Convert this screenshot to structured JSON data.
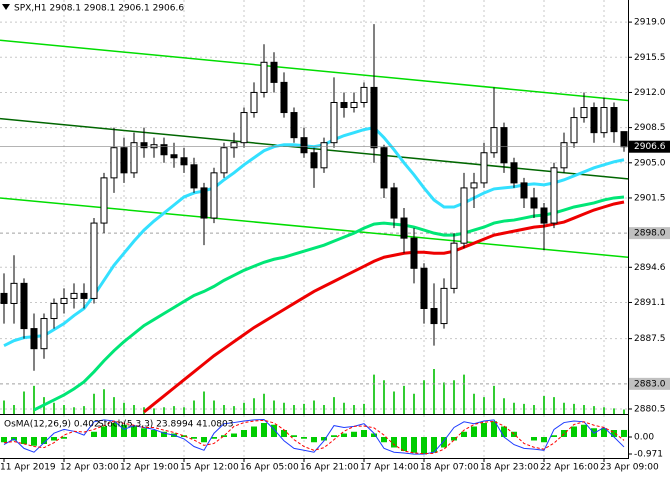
{
  "chart_data": {
    "type": "candlestick",
    "title": "SPX,H1  2908.1 2908.1 2906.1 2906.6",
    "categories": [
      "11 Apr 2019",
      null,
      null,
      null,
      null,
      null,
      "12 Apr 03:00",
      null,
      null,
      null,
      null,
      null,
      "12 Apr 19:00",
      null,
      null,
      null,
      null,
      null,
      "15 Apr 12:00",
      null,
      null,
      null,
      null,
      null,
      "16 Apr 05:00",
      null,
      null,
      null,
      null,
      null,
      "16 Apr 21:00",
      null,
      null,
      null,
      null,
      null,
      "17 Apr 14:00",
      null,
      null,
      null,
      null,
      null,
      "18 Apr 07:00",
      null,
      null,
      null,
      null,
      null,
      "18 Apr 23:00",
      null,
      null,
      null,
      null,
      null,
      "22 Apr 16:00",
      null,
      null,
      null,
      null,
      null,
      "23 Apr 09:00",
      null,
      null
    ],
    "open": [
      2892,
      2891,
      2893,
      2888.5,
      2886.5,
      2889.5,
      2891,
      2891.5,
      2892,
      2891.5,
      2899,
      2903.5,
      2906.5,
      2904,
      2907,
      2906.5,
      2906.8,
      2905.8,
      2905.5,
      2904.8,
      2902.5,
      2899.5,
      2904,
      2906.5,
      2907,
      2910,
      2912,
      2915,
      2913,
      2910,
      2907.5,
      2906,
      2904.5,
      2907,
      2911,
      2910.5,
      2911,
      2912.5,
      2906.5,
      2902.5,
      2899.5,
      2897.5,
      2894.5,
      2890.5,
      2889,
      2892.5,
      2897,
      2902.5,
      2903,
      2906,
      2908.5,
      2905,
      2903,
      2901.5,
      2900.5,
      2899,
      2904.5,
      2907,
      2909.5,
      2910.5,
      2908,
      2910.5,
      2908.1
    ],
    "high": [
      2894,
      2895.8,
      2893.5,
      2890,
      2890,
      2891.5,
      2892.5,
      2893,
      2893,
      2899.5,
      2904,
      2908.5,
      2907.5,
      2908,
      2908.5,
      2907.5,
      2907.5,
      2907,
      2906.5,
      2905.5,
      2903,
      2904.5,
      2907,
      2908,
      2910.5,
      2913,
      2916.8,
      2916,
      2914,
      2910.5,
      2908.5,
      2906.5,
      2907.5,
      2913.5,
      2912,
      2912,
      2913,
      2918.8,
      2906.8,
      2903,
      2900.5,
      2898.5,
      2895,
      2893,
      2893.5,
      2898,
      2904,
      2904,
      2907,
      2912.5,
      2909,
      2905.5,
      2903.5,
      2902.5,
      2901,
      2905,
      2908,
      2910.5,
      2912,
      2911,
      2911.5,
      2911,
      2908.1
    ],
    "low": [
      2889,
      2889,
      2887.5,
      2884.3,
      2885.5,
      2888.5,
      2890,
      2890.5,
      2890.5,
      2891,
      2898,
      2902,
      2903,
      2903.5,
      2905.5,
      2905.5,
      2905,
      2904.5,
      2904,
      2902,
      2896.8,
      2899,
      2903.5,
      2905.5,
      2906.5,
      2909.5,
      2911.5,
      2912,
      2909.5,
      2907,
      2905.5,
      2902.5,
      2904,
      2906.5,
      2909.5,
      2910,
      2910.5,
      2905,
      2901.5,
      2898.5,
      2896,
      2893,
      2889,
      2886.8,
      2888.5,
      2892,
      2896.5,
      2900.5,
      2902.5,
      2905.5,
      2904,
      2902.5,
      2900.5,
      2899.5,
      2896.3,
      2898.5,
      2904,
      2906.5,
      2909,
      2907,
      2907.5,
      2907,
      2906.1
    ],
    "close": [
      2891,
      2893,
      2888.5,
      2886.5,
      2889.5,
      2891,
      2891.5,
      2892,
      2891.5,
      2899,
      2903.5,
      2906.5,
      2904,
      2907,
      2906.5,
      2906.8,
      2905.8,
      2905.5,
      2904.8,
      2902.5,
      2899.5,
      2904,
      2906.5,
      2907,
      2910,
      2912,
      2915,
      2913,
      2910,
      2907.5,
      2906,
      2904.5,
      2907,
      2911,
      2910.5,
      2911,
      2912.5,
      2906.5,
      2902.5,
      2899.5,
      2897.5,
      2894.5,
      2890.5,
      2889,
      2892.5,
      2897,
      2902.5,
      2903,
      2906,
      2908.5,
      2905,
      2903,
      2901.5,
      2900.5,
      2899,
      2904.5,
      2907,
      2909.5,
      2910.5,
      2908,
      2910.5,
      2908.1,
      2906.6
    ],
    "series": [
      {
        "color": "#33e0ff",
        "values": [
          2886.8,
          2887.3,
          2887.6,
          2887.7,
          2887.8,
          2888.4,
          2889,
          2889.8,
          2890.5,
          2891.8,
          2893.3,
          2894.8,
          2896,
          2897.2,
          2898.3,
          2899.2,
          2900,
          2900.8,
          2901.6,
          2902,
          2902.2,
          2902.5,
          2903.3,
          2904,
          2904.8,
          2905.5,
          2906.2,
          2906.6,
          2906.8,
          2906.8,
          2906.7,
          2906.6,
          2906.8,
          2907.3,
          2907.7,
          2908,
          2908.3,
          2908.5,
          2907.5,
          2906.3,
          2905,
          2903.8,
          2902.5,
          2901.3,
          2900.6,
          2900.6,
          2901,
          2901.5,
          2902,
          2902.4,
          2902.5,
          2902.6,
          2902.8,
          2902.9,
          2902.8,
          2903,
          2903.3,
          2903.7,
          2904.1,
          2904.5,
          2904.8,
          2905.1,
          2905.3
        ]
      },
      {
        "color": "#00e676",
        "values": [
          null,
          null,
          null,
          2880.4,
          2880.9,
          2881.4,
          2881.9,
          2882.5,
          2883.2,
          2884.2,
          2885.3,
          2886.3,
          2887.2,
          2888,
          2888.8,
          2889.4,
          2890,
          2890.6,
          2891.2,
          2891.8,
          2892.2,
          2892.7,
          2893.3,
          2893.8,
          2894.3,
          2894.7,
          2895.1,
          2895.4,
          2895.6,
          2895.9,
          2896.2,
          2896.5,
          2896.8,
          2897.2,
          2897.6,
          2898,
          2898.5,
          2898.9,
          2899,
          2898.9,
          2898.8,
          2898.6,
          2898.3,
          2898,
          2897.8,
          2897.8,
          2898,
          2898.3,
          2898.6,
          2899,
          2899.2,
          2899.3,
          2899.5,
          2899.7,
          2899.8,
          2900,
          2900.3,
          2900.6,
          2900.8,
          2901,
          2901.3,
          2901.5,
          2901.6
        ]
      },
      {
        "color": "#ee0000",
        "values": [
          null,
          null,
          null,
          null,
          null,
          null,
          null,
          null,
          null,
          null,
          null,
          null,
          null,
          null,
          2880.2,
          2881,
          2881.8,
          2882.6,
          2883.4,
          2884.2,
          2885,
          2885.8,
          2886.5,
          2887.2,
          2887.9,
          2888.6,
          2889.2,
          2889.8,
          2890.4,
          2891,
          2891.6,
          2892.2,
          2892.7,
          2893.2,
          2893.7,
          2894.2,
          2894.7,
          2895.2,
          2895.6,
          2895.8,
          2896,
          2896.1,
          2896.1,
          2896,
          2896,
          2896.2,
          2896.6,
          2897,
          2897.4,
          2897.8,
          2898,
          2898.2,
          2898.4,
          2898.6,
          2898.7,
          2898.9,
          2899.1,
          2899.5,
          2899.9,
          2900.3,
          2900.6,
          2900.9,
          2901.1
        ]
      }
    ],
    "trend_lines": [
      {
        "color": "#00dd00",
        "values": [
          2917.2,
          2911.2
        ]
      },
      {
        "color": "#006600",
        "values": [
          2909.4,
          2903.4
        ]
      },
      {
        "color": "#00dd00",
        "values": [
          2901.5,
          2895.6
        ]
      }
    ],
    "volume": [
      12,
      8,
      20,
      25,
      15,
      10,
      8,
      6,
      7,
      18,
      22,
      15,
      10,
      8,
      6,
      5,
      6,
      7,
      6,
      12,
      20,
      12,
      8,
      7,
      10,
      14,
      18,
      12,
      10,
      8,
      9,
      12,
      8,
      15,
      10,
      8,
      9,
      35,
      30,
      20,
      25,
      18,
      30,
      40,
      28,
      30,
      35,
      18,
      15,
      25,
      14,
      10,
      9,
      8,
      16,
      15,
      10,
      9,
      8,
      7,
      6,
      5,
      4
    ],
    "ylim": [
      2880.0,
      2921.2
    ],
    "yticks": [
      {
        "value": 2919,
        "label": "2919.0"
      },
      2915.5,
      {
        "value": 2912,
        "label": "2912.0"
      },
      2908.5,
      {
        "value": 2905,
        "label": "2905.0"
      },
      2901.5,
      2894.6,
      2891.1,
      2887.5,
      2880.5
    ],
    "levels": [
      {
        "value": 2898,
        "label": "2898.0"
      },
      {
        "value": 2883,
        "label": "2883.0"
      }
    ],
    "last_price": 2906.6,
    "grid": true,
    "indicator": {
      "osma_label": "OsMA(12,26,9) 0.402",
      "stoch_label": "Stoch(5,3,3) 23.8994 41.0803",
      "osma": [
        -0.3,
        -0.2,
        -0.4,
        -0.5,
        -0.4,
        -0.2,
        -0.1,
        0,
        0,
        0.3,
        0.6,
        0.8,
        0.7,
        0.6,
        0.5,
        0.4,
        0.3,
        0.2,
        0.1,
        -0.1,
        -0.3,
        -0.1,
        0.1,
        0.2,
        0.4,
        0.6,
        0.8,
        0.7,
        0.4,
        0.1,
        -0.1,
        -0.3,
        -0.2,
        0.1,
        0.2,
        0.3,
        0.4,
        0.2,
        -0.3,
        -0.6,
        -0.8,
        -0.9,
        -1,
        -0.9,
        -0.6,
        -0.2,
        0.3,
        0.6,
        0.8,
        0.9,
        0.6,
        0.3,
        0,
        -0.2,
        -0.3,
        0.1,
        0.4,
        0.6,
        0.7,
        0.5,
        0.5,
        0.4,
        0.402
      ],
      "osma_color": "#00cc00",
      "ylim": [
        -1.2,
        1.2
      ],
      "yticks": [
        {
          "value": 0,
          "label": "0.00"
        },
        -0.971
      ],
      "stoch_ylim": [
        0,
        100
      ],
      "stoch_main": {
        "color": "#1e3cff",
        "values": [
          30,
          45,
          20,
          10,
          35,
          60,
          70,
          65,
          55,
          90,
          95,
          92,
          70,
          80,
          75,
          70,
          60,
          55,
          45,
          25,
          15,
          60,
          85,
          88,
          92,
          95,
          96,
          70,
          40,
          20,
          15,
          10,
          40,
          80,
          75,
          78,
          85,
          60,
          20,
          10,
          8,
          5,
          5,
          10,
          40,
          75,
          90,
          85,
          92,
          95,
          50,
          30,
          20,
          18,
          15,
          70,
          88,
          92,
          90,
          60,
          75,
          50,
          23.8994
        ]
      },
      "stoch_signal": {
        "color": "#ff0000",
        "values": [
          35,
          38,
          32,
          25,
          22,
          35,
          55,
          65,
          63,
          70,
          80,
          92,
          86,
          81,
          75,
          75,
          68,
          62,
          53,
          42,
          28,
          33,
          53,
          78,
          88,
          92,
          94,
          87,
          69,
          43,
          25,
          15,
          22,
          43,
          65,
          78,
          79,
          74,
          55,
          30,
          13,
          8,
          6,
          7,
          18,
          42,
          68,
          83,
          89,
          91,
          79,
          58,
          33,
          23,
          18,
          34,
          58,
          83,
          90,
          81,
          75,
          62,
          41.0803
        ]
      }
    }
  }
}
